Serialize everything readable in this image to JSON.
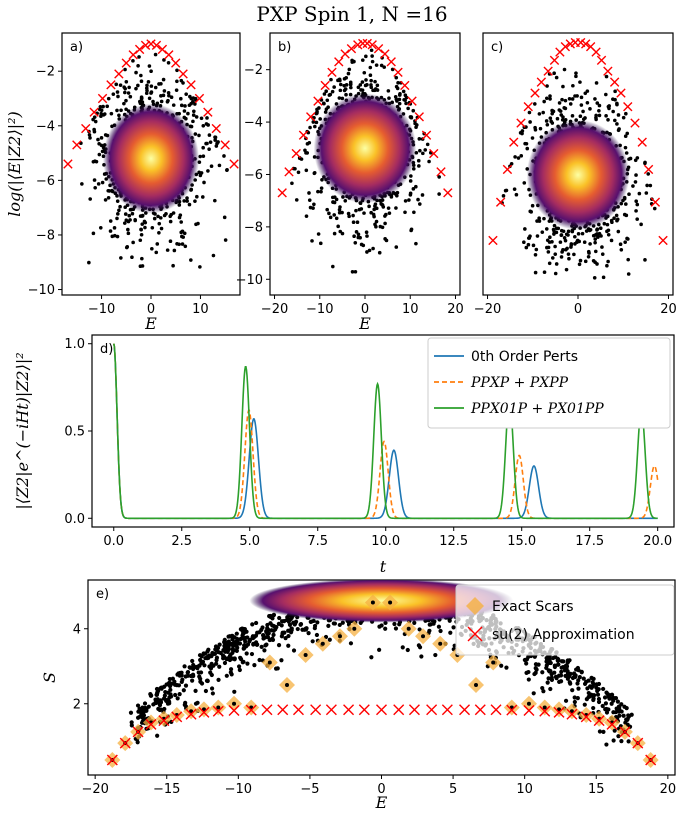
{
  "title": "PXP Spin 1, N =16",
  "colors": {
    "zeroth": "#1f77b4",
    "first": "#ff7f0e",
    "second": "#2ca02c",
    "cross": "#ff0000",
    "scar": "#f5b041",
    "dots": "#000000"
  },
  "chart_data": [
    {
      "panel": "a)",
      "type": "scatter",
      "xlabel": "E",
      "ylabel": "log(|⟨E|Z2⟩|²)",
      "xlim": [
        -18,
        18
      ],
      "ylim": [
        -10.2,
        -0.6
      ],
      "xticks": [
        -10,
        0,
        10
      ],
      "yticks": [
        -10,
        -8,
        -6,
        -4,
        -2
      ],
      "density_center": [
        0,
        -5.2
      ],
      "cross_series": {
        "x": [
          -16.8,
          -15.0,
          -13.2,
          -11.5,
          -9.8,
          -8.1,
          -6.5,
          -5.0,
          -3.6,
          -2.3,
          -1.1,
          0,
          1.1,
          2.3,
          3.6,
          5.0,
          6.5,
          8.1,
          9.8,
          11.5,
          13.2,
          15.0,
          16.8
        ],
        "y": [
          -5.4,
          -4.7,
          -4.1,
          -3.5,
          -3.0,
          -2.5,
          -2.1,
          -1.7,
          -1.4,
          -1.2,
          -1.05,
          -1.0,
          -1.05,
          -1.2,
          -1.4,
          -1.7,
          -2.1,
          -2.5,
          -3.0,
          -3.5,
          -4.1,
          -4.7,
          -5.4
        ]
      }
    },
    {
      "panel": "b)",
      "type": "scatter",
      "xlabel": "E",
      "ylabel": "",
      "xlim": [
        -21,
        21
      ],
      "ylim": [
        -10.6,
        -0.6
      ],
      "xticks": [
        -20,
        -10,
        0,
        10,
        20
      ],
      "yticks": [
        -10,
        -8,
        -6,
        -4,
        -2
      ],
      "density_center": [
        0,
        -5.0
      ],
      "cross_series": {
        "x": [
          -18.3,
          -16.8,
          -15.2,
          -13.6,
          -12.0,
          -10.4,
          -8.8,
          -7.3,
          -5.8,
          -4.4,
          -3.0,
          -1.6,
          -0.5,
          0.5,
          1.6,
          3.0,
          4.4,
          5.8,
          7.3,
          8.8,
          10.4,
          12.0,
          13.6,
          15.2,
          16.8,
          18.3
        ],
        "y": [
          -6.7,
          -5.9,
          -5.2,
          -4.5,
          -3.8,
          -3.2,
          -2.6,
          -2.1,
          -1.7,
          -1.4,
          -1.2,
          -1.05,
          -1.0,
          -1.0,
          -1.05,
          -1.2,
          -1.4,
          -1.7,
          -2.1,
          -2.6,
          -3.2,
          -3.8,
          -4.5,
          -5.2,
          -5.9,
          -6.7
        ]
      }
    },
    {
      "panel": "c)",
      "type": "scatter",
      "xlabel": "",
      "ylabel": "",
      "xlim": [
        -21,
        21
      ],
      "ylim": [
        -10.2,
        -0.6
      ],
      "xticks": [
        -20,
        0,
        20
      ],
      "yticks": [],
      "density_center": [
        0,
        -5.8
      ],
      "cross_series": {
        "x": [
          -18.8,
          -17.1,
          -15.6,
          -14.2,
          -12.6,
          -11.0,
          -9.5,
          -8.1,
          -6.6,
          -5.2,
          -4.0,
          -2.8,
          -1.7,
          -0.6,
          0.6,
          1.7,
          2.8,
          4.0,
          5.2,
          6.6,
          8.1,
          9.5,
          11.0,
          12.6,
          14.2,
          15.6,
          17.1,
          18.8
        ],
        "y": [
          -8.2,
          -6.8,
          -5.6,
          -4.6,
          -3.9,
          -3.3,
          -2.8,
          -2.4,
          -2.0,
          -1.6,
          -1.3,
          -1.1,
          -1.0,
          -0.95,
          -0.95,
          -1.0,
          -1.1,
          -1.3,
          -1.6,
          -2.0,
          -2.4,
          -2.8,
          -3.3,
          -3.9,
          -4.6,
          -5.6,
          -6.8,
          -8.2
        ]
      }
    },
    {
      "panel": "d)",
      "type": "line",
      "xlabel": "t",
      "ylabel": "|⟨Z2|e^(−iHt)|Z2⟩|²",
      "xlim": [
        -0.8,
        20.6
      ],
      "ylim": [
        -0.05,
        1.05
      ],
      "xticks": [
        0.0,
        2.5,
        5.0,
        7.5,
        10.0,
        12.5,
        15.0,
        17.5,
        20.0
      ],
      "yticks": [
        0.0,
        0.5,
        1.0
      ],
      "series": [
        {
          "name": "0th Order Perts",
          "period": 5.15,
          "amps": [
            0.57,
            0.39,
            0.3
          ],
          "width": 0.17,
          "dashed": false
        },
        {
          "name": "PPXP + PXPP",
          "period": 4.97,
          "amps": [
            0.62,
            0.44,
            0.36,
            0.3
          ],
          "width": 0.15,
          "dashed": true
        },
        {
          "name": "PPX01P + PX01PP",
          "period": 4.85,
          "amps": [
            0.87,
            0.77,
            0.68,
            0.62
          ],
          "width": 0.14,
          "dashed": false
        }
      ]
    },
    {
      "panel": "e)",
      "type": "scatter",
      "xlabel": "E",
      "ylabel": "S",
      "xlim": [
        -20.5,
        20.5
      ],
      "ylim": [
        0.1,
        5.3
      ],
      "xticks": [
        -20,
        -15,
        -10,
        -5,
        0,
        5,
        10,
        15,
        20
      ],
      "yticks": [
        2,
        4
      ],
      "legend": [
        "Exact Scars",
        "su(2) Approximation"
      ],
      "scars": {
        "x": [
          -18.8,
          -17.9,
          -17.0,
          -16.1,
          -15.2,
          -14.3,
          -13.3,
          -12.4,
          -11.4,
          -10.3,
          -9.1,
          -7.8,
          -6.6,
          -5.3,
          -4.1,
          -2.9,
          -1.9,
          -0.6,
          0.6,
          1.9,
          2.9,
          4.1,
          5.3,
          6.6,
          7.8,
          9.1,
          10.3,
          11.4,
          12.4,
          13.3,
          14.3,
          15.2,
          16.1,
          17.0,
          17.9,
          18.8
        ],
        "y": [
          0.5,
          0.95,
          1.25,
          1.5,
          1.6,
          1.7,
          1.8,
          1.85,
          1.9,
          2.0,
          1.9,
          3.1,
          2.5,
          3.3,
          3.6,
          3.8,
          4.0,
          4.7,
          4.7,
          4.0,
          3.8,
          3.6,
          3.3,
          2.5,
          3.1,
          1.9,
          2.0,
          1.9,
          1.85,
          1.8,
          1.7,
          1.6,
          1.5,
          1.25,
          0.95,
          0.5
        ]
      },
      "crosses": {
        "x": [
          -18.8,
          -17.9,
          -17.0,
          -16.1,
          -15.2,
          -14.3,
          -13.3,
          -12.4,
          -11.4,
          -10.3,
          -9.1,
          -8.0,
          -6.9,
          -5.8,
          -4.6,
          -3.5,
          -2.3,
          -1.2,
          0.0,
          1.2,
          2.3,
          3.5,
          4.6,
          5.8,
          6.9,
          8.0,
          9.1,
          10.3,
          11.4,
          12.4,
          13.3,
          14.3,
          15.2,
          16.1,
          17.0,
          17.9,
          18.8
        ],
        "y": [
          0.5,
          0.95,
          1.25,
          1.45,
          1.55,
          1.65,
          1.72,
          1.77,
          1.8,
          1.82,
          1.83,
          1.84,
          1.84,
          1.84,
          1.84,
          1.84,
          1.84,
          1.84,
          1.84,
          1.84,
          1.84,
          1.84,
          1.84,
          1.84,
          1.84,
          1.84,
          1.83,
          1.82,
          1.8,
          1.77,
          1.72,
          1.65,
          1.55,
          1.45,
          1.25,
          0.95,
          0.5
        ]
      }
    }
  ]
}
